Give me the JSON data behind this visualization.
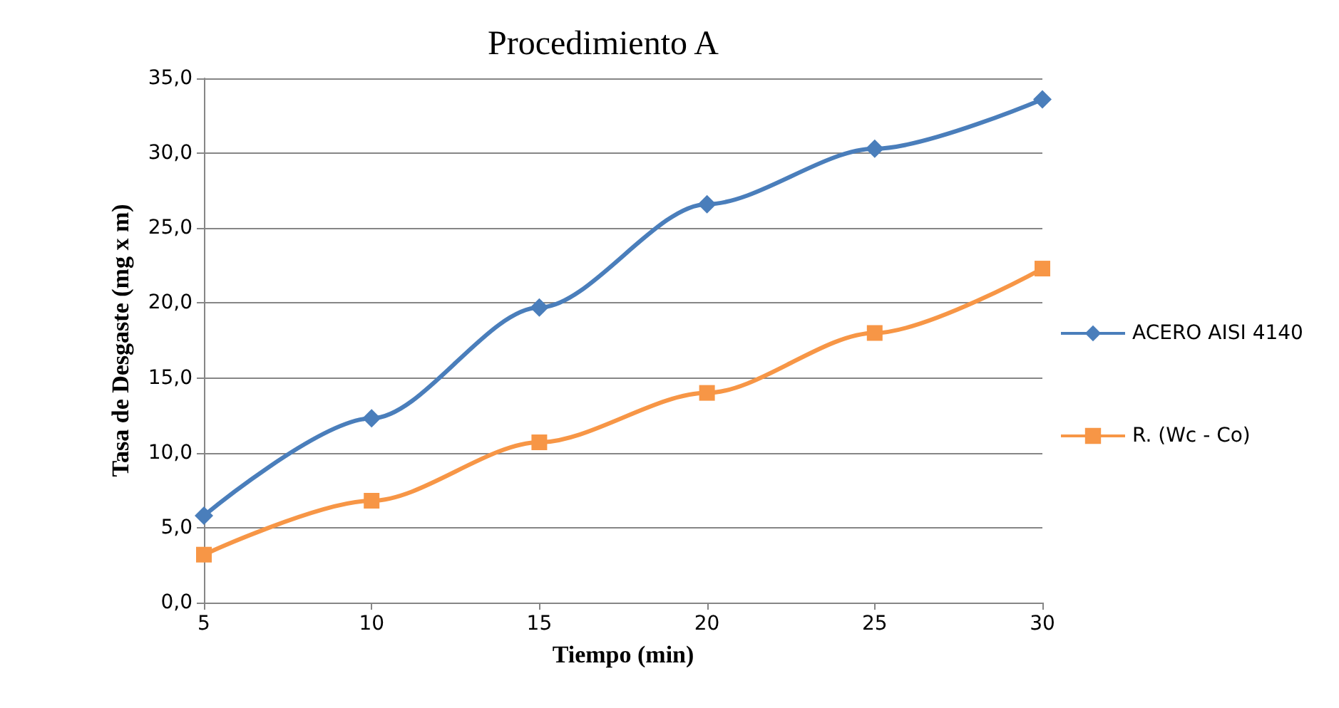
{
  "chart_data": {
    "type": "line",
    "title": "Procedimiento A",
    "xlabel": "Tiempo (min)",
    "ylabel": "Tasa de Desgaste (mg x m)",
    "x": [
      5,
      10,
      15,
      20,
      25,
      30
    ],
    "series": [
      {
        "name": "ACERO AISI 4140",
        "color": "#4a7ebb",
        "marker": "diamond",
        "values": [
          5.8,
          12.3,
          19.7,
          26.6,
          30.3,
          33.6
        ]
      },
      {
        "name": "R. (Wc - Co)",
        "color": "#f79646",
        "marker": "square",
        "values": [
          3.2,
          6.8,
          10.7,
          14.0,
          18.0,
          22.3
        ]
      }
    ],
    "xlim": [
      5,
      30
    ],
    "xticks": [
      5,
      10,
      15,
      20,
      25,
      30
    ],
    "ylim": [
      0,
      35
    ],
    "yticks": [
      {
        "value": 0,
        "label": "0,0"
      },
      {
        "value": 5,
        "label": "5,0"
      },
      {
        "value": 10,
        "label": "10,0"
      },
      {
        "value": 15,
        "label": "15,0"
      },
      {
        "value": 20,
        "label": "20,0"
      },
      {
        "value": 25,
        "label": "25,0"
      },
      {
        "value": 30,
        "label": "30,0"
      },
      {
        "value": 35,
        "label": "35,0"
      }
    ],
    "grid": "y",
    "legend": "right"
  }
}
